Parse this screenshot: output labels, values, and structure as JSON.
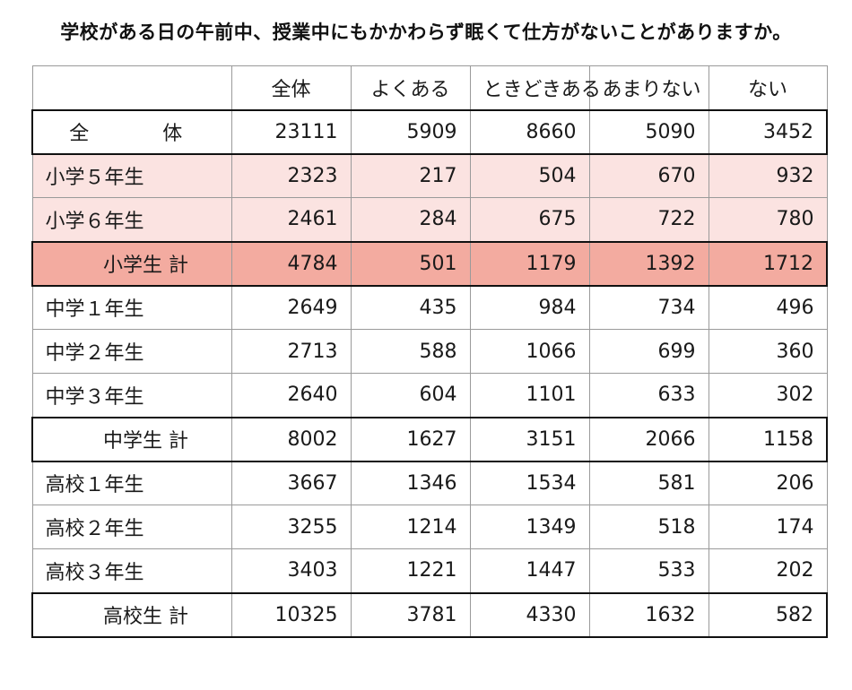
{
  "chart_data": {
    "type": "table",
    "title": "学校がある日の午前中、授業中にもかかわらず眠くて仕方がないことがありますか。",
    "columns": [
      "全体",
      "よくある",
      "ときどきある",
      "あまりない",
      "ない"
    ],
    "rows": [
      {
        "label": "全　体",
        "values": [
          "23111",
          "5909",
          "8660",
          "5090",
          "3452"
        ]
      },
      {
        "label": "小学５年生",
        "values": [
          "2323",
          "217",
          "504",
          "670",
          "932"
        ]
      },
      {
        "label": "小学６年生",
        "values": [
          "2461",
          "284",
          "675",
          "722",
          "780"
        ]
      },
      {
        "label": "小学生 計",
        "values": [
          "4784",
          "501",
          "1179",
          "1392",
          "1712"
        ]
      },
      {
        "label": "中学１年生",
        "values": [
          "2649",
          "435",
          "984",
          "734",
          "496"
        ]
      },
      {
        "label": "中学２年生",
        "values": [
          "2713",
          "588",
          "1066",
          "699",
          "360"
        ]
      },
      {
        "label": "中学３年生",
        "values": [
          "2640",
          "604",
          "1101",
          "633",
          "302"
        ]
      },
      {
        "label": "中学生 計",
        "values": [
          "8002",
          "1627",
          "3151",
          "2066",
          "1158"
        ]
      },
      {
        "label": "高校１年生",
        "values": [
          "3667",
          "1346",
          "1534",
          "581",
          "206"
        ]
      },
      {
        "label": "高校２年生",
        "values": [
          "3255",
          "1214",
          "1349",
          "518",
          "174"
        ]
      },
      {
        "label": "高校３年生",
        "values": [
          "3403",
          "1221",
          "1447",
          "533",
          "202"
        ]
      },
      {
        "label": "高校生 計",
        "values": [
          "10325",
          "3781",
          "4330",
          "1632",
          "582"
        ]
      }
    ],
    "colors": {
      "elementary_row": "#fbe3e1",
      "elementary_total_row": "#f3aba0",
      "border": "#9a9a9a",
      "emphasis_border": "#111111"
    }
  }
}
